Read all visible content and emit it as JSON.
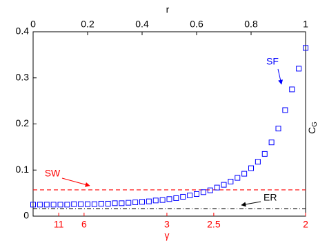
{
  "chart_data": {
    "type": "scatter",
    "xlabel": "r",
    "ylabel": {
      "base": "C",
      "sub": "G"
    },
    "x2label": "γ",
    "xlim": [
      0,
      1
    ],
    "ylim": [
      0,
      0.4
    ],
    "xticks": [
      0,
      0.2,
      0.4,
      0.6,
      0.8,
      1
    ],
    "yticks": [
      0,
      0.1,
      0.2,
      0.3,
      0.4
    ],
    "x2ticks": [
      {
        "value": 0.094,
        "label": "11"
      },
      {
        "value": 0.187,
        "label": "6"
      },
      {
        "value": 0.491,
        "label": "3"
      },
      {
        "value": 0.663,
        "label": "2.5"
      },
      {
        "value": 1,
        "label": "2"
      }
    ],
    "x2color": "#ff0000",
    "series": [
      {
        "name": "SF",
        "color": "#0000ff",
        "x": [
          0,
          0.025,
          0.05,
          0.075,
          0.1,
          0.125,
          0.15,
          0.175,
          0.2,
          0.225,
          0.25,
          0.275,
          0.3,
          0.325,
          0.35,
          0.375,
          0.4,
          0.425,
          0.45,
          0.475,
          0.5,
          0.525,
          0.55,
          0.575,
          0.6,
          0.625,
          0.65,
          0.675,
          0.7,
          0.725,
          0.75,
          0.775,
          0.8,
          0.825,
          0.85,
          0.875,
          0.9,
          0.925,
          0.95,
          0.975,
          1
        ],
        "values": [
          0.025,
          0.025,
          0.025,
          0.025,
          0.025,
          0.025,
          0.026,
          0.026,
          0.026,
          0.026,
          0.027,
          0.027,
          0.028,
          0.028,
          0.029,
          0.03,
          0.031,
          0.032,
          0.034,
          0.035,
          0.037,
          0.039,
          0.042,
          0.045,
          0.048,
          0.052,
          0.056,
          0.062,
          0.068,
          0.075,
          0.083,
          0.092,
          0.104,
          0.118,
          0.135,
          0.16,
          0.19,
          0.23,
          0.275,
          0.32,
          0.365
        ]
      }
    ],
    "hlines": [
      {
        "name": "SW",
        "value": 0.057,
        "color": "#ff0000",
        "style": "dashed"
      },
      {
        "name": "ER",
        "value": 0.016,
        "color": "#000000",
        "style": "dashdot"
      }
    ]
  }
}
